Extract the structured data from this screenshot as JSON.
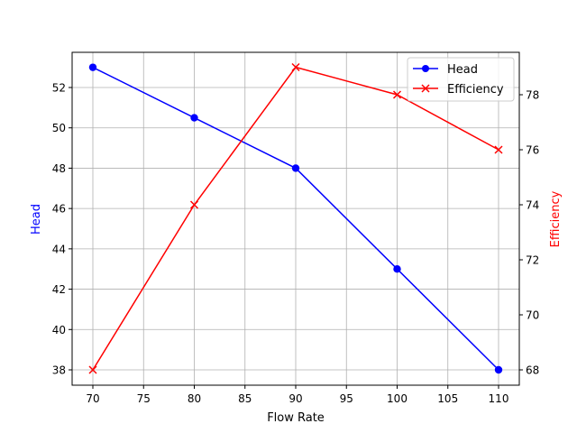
{
  "chart_data": {
    "type": "line",
    "title": "",
    "xlabel": "Flow Rate",
    "x": [
      70,
      80,
      90,
      100,
      110
    ],
    "xticks": [
      70,
      75,
      80,
      85,
      90,
      95,
      100,
      105,
      110
    ],
    "series": [
      {
        "name": "Head",
        "axis": "left",
        "color": "#0000ff",
        "marker": "circle",
        "values": [
          53,
          50.5,
          48,
          43,
          38
        ]
      },
      {
        "name": "Efficiency",
        "axis": "right",
        "color": "#ff0000",
        "marker": "x",
        "values": [
          68,
          74,
          79,
          78,
          76
        ]
      }
    ],
    "ylabel_left": "Head",
    "ylabel_right": "Efficiency",
    "yticks_left": [
      38,
      40,
      42,
      44,
      46,
      48,
      50,
      52
    ],
    "yticks_right": [
      68,
      70,
      72,
      74,
      76,
      78
    ],
    "grid": true,
    "legend_position": "upper right"
  }
}
